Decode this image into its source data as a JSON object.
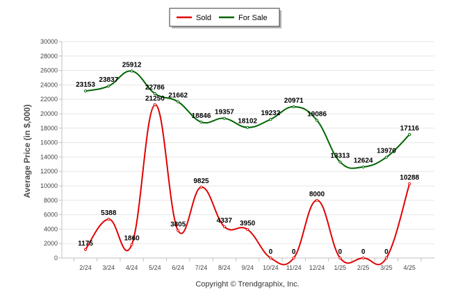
{
  "chart_data": {
    "type": "line",
    "ylabel": "Average Price (in $,000)",
    "categories": [
      "2/24",
      "3/24",
      "4/24",
      "5/24",
      "6/24",
      "7/24",
      "8/24",
      "9/24",
      "10/24",
      "11/24",
      "12/24",
      "1/25",
      "2/25",
      "3/25",
      "4/25"
    ],
    "ylim": [
      0,
      30000
    ],
    "yticks": [
      0,
      2000,
      4000,
      6000,
      8000,
      10000,
      12000,
      14000,
      16000,
      18000,
      20000,
      22000,
      24000,
      26000,
      28000,
      30000
    ],
    "grid": true,
    "legend_position": "top",
    "series": [
      {
        "name": "Sold",
        "color": "#e00000",
        "values": [
          1175,
          5388,
          1860,
          21250,
          3805,
          9825,
          4337,
          3950,
          0,
          0,
          8000,
          0,
          0,
          0,
          10288
        ]
      },
      {
        "name": "For Sale",
        "color": "#006400",
        "values": [
          23153,
          23837,
          25912,
          22786,
          21662,
          18846,
          19357,
          18102,
          19232,
          20971,
          19086,
          13313,
          12624,
          13970,
          17116
        ]
      }
    ]
  },
  "footer": {
    "copyright": "Copyright © Trendgraphix, Inc."
  }
}
